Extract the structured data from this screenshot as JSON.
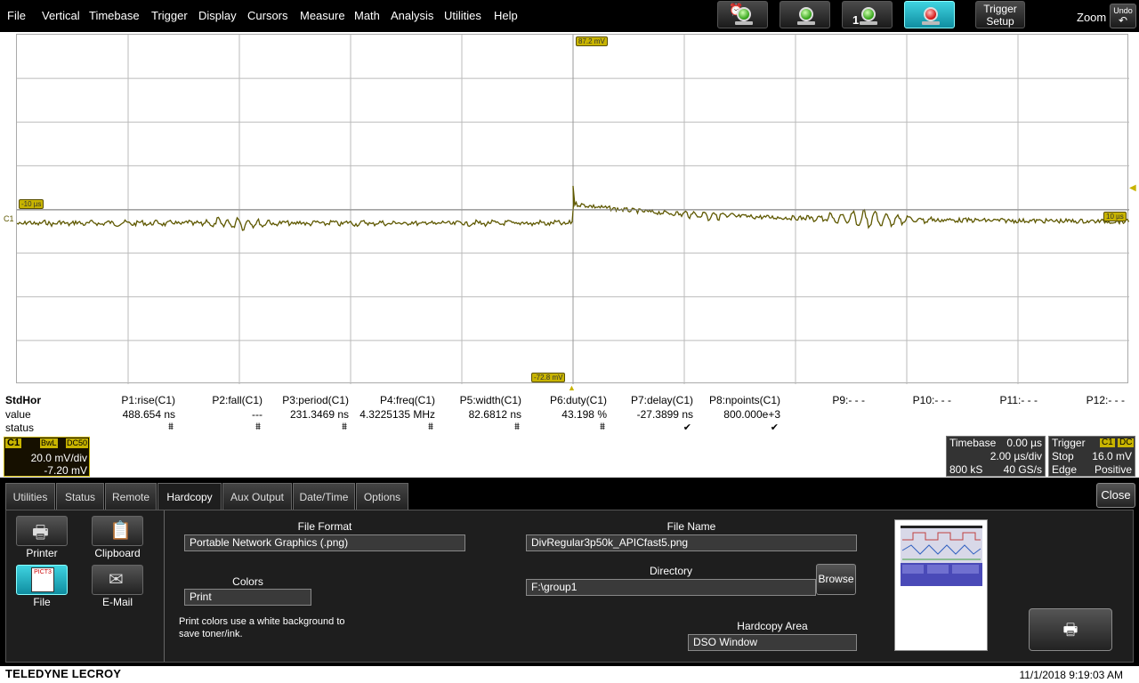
{
  "menu": [
    "File",
    "Vertical",
    "Timebase",
    "Trigger",
    "Display",
    "Cursors",
    "Measure",
    "Math",
    "Analysis",
    "Utilities",
    "Help"
  ],
  "toolbar": {
    "trigger_setup": [
      "Trigger",
      "Setup"
    ],
    "zoom": "Zoom",
    "undo": "Undo",
    "single_badge": "1"
  },
  "markers": {
    "top_level": "87.2 mV",
    "bottom_level": "-72.8 mV",
    "left_time": "-10 µs",
    "right_time": "10 µs",
    "channel": "C1"
  },
  "measurements": {
    "header_label": "StdHor",
    "row_labels": [
      "value",
      "status"
    ],
    "params": [
      {
        "name": "P1:rise(C1)",
        "value": "488.654 ns",
        "status": "⩩"
      },
      {
        "name": "P2:fall(C1)",
        "value": "---",
        "status": "⩩"
      },
      {
        "name": "P3:period(C1)",
        "value": "231.3469 ns",
        "status": "⩩"
      },
      {
        "name": "P4:freq(C1)",
        "value": "4.3225135 MHz",
        "status": "⩩"
      },
      {
        "name": "P5:width(C1)",
        "value": "82.6812 ns",
        "status": "⩩"
      },
      {
        "name": "P6:duty(C1)",
        "value": "43.198 %",
        "status": "⩩"
      },
      {
        "name": "P7:delay(C1)",
        "value": "-27.3899 ns",
        "status": "✔"
      },
      {
        "name": "P8:npoints(C1)",
        "value": "800.000e+3",
        "status": "✔"
      },
      {
        "name": "P9:- - -",
        "value": "",
        "status": ""
      },
      {
        "name": "P10:- - -",
        "value": "",
        "status": ""
      },
      {
        "name": "P11:- - -",
        "value": "",
        "status": ""
      },
      {
        "name": "P12:- - -",
        "value": "",
        "status": ""
      }
    ]
  },
  "channel1": {
    "tag": "C1",
    "bwl": "BwL",
    "coupling": "DC50",
    "vdiv": "20.0 mV/div",
    "offset": "-7.20 mV"
  },
  "timebase": {
    "label": "Timebase",
    "delay": "0.00 µs",
    "tdiv": "2.00 µs/div",
    "samples": "800 kS",
    "rate": "40 GS/s"
  },
  "trigger": {
    "label": "Trigger",
    "channel": "C1",
    "coupling": "DC",
    "mode": "Stop",
    "level": "16.0 mV",
    "type": "Edge",
    "slope": "Positive"
  },
  "panel": {
    "tabs": [
      "Utilities",
      "Status",
      "Remote",
      "Hardcopy",
      "Aux Output",
      "Date/Time",
      "Options"
    ],
    "active_tab": "Hardcopy",
    "close": "Close",
    "destinations": [
      "Printer",
      "Clipboard",
      "File",
      "E-Mail"
    ],
    "active_destination": "File",
    "file_icon_text": "PICT3",
    "file_format_label": "File Format",
    "file_format": "Portable Network Graphics (.png)",
    "colors_label": "Colors",
    "colors": "Print",
    "colors_help": "Print colors use a white background to save toner/ink.",
    "file_name_label": "File Name",
    "file_name": "DivRegular3p50k_APICfast5.png",
    "directory_label": "Directory",
    "directory": "F:\\group1",
    "browse": "Browse",
    "hardcopy_area_label": "Hardcopy Area",
    "hardcopy_area": "DSO Window"
  },
  "footer": {
    "brand": "TELEDYNE LECROY",
    "datetime": "11/1/2018 9:19:03 AM"
  },
  "colors": {
    "trace": "#6b6400",
    "marker": "#c8b400",
    "active_button": "#1fb3c4",
    "panel_bg": "#1e1e1e"
  }
}
